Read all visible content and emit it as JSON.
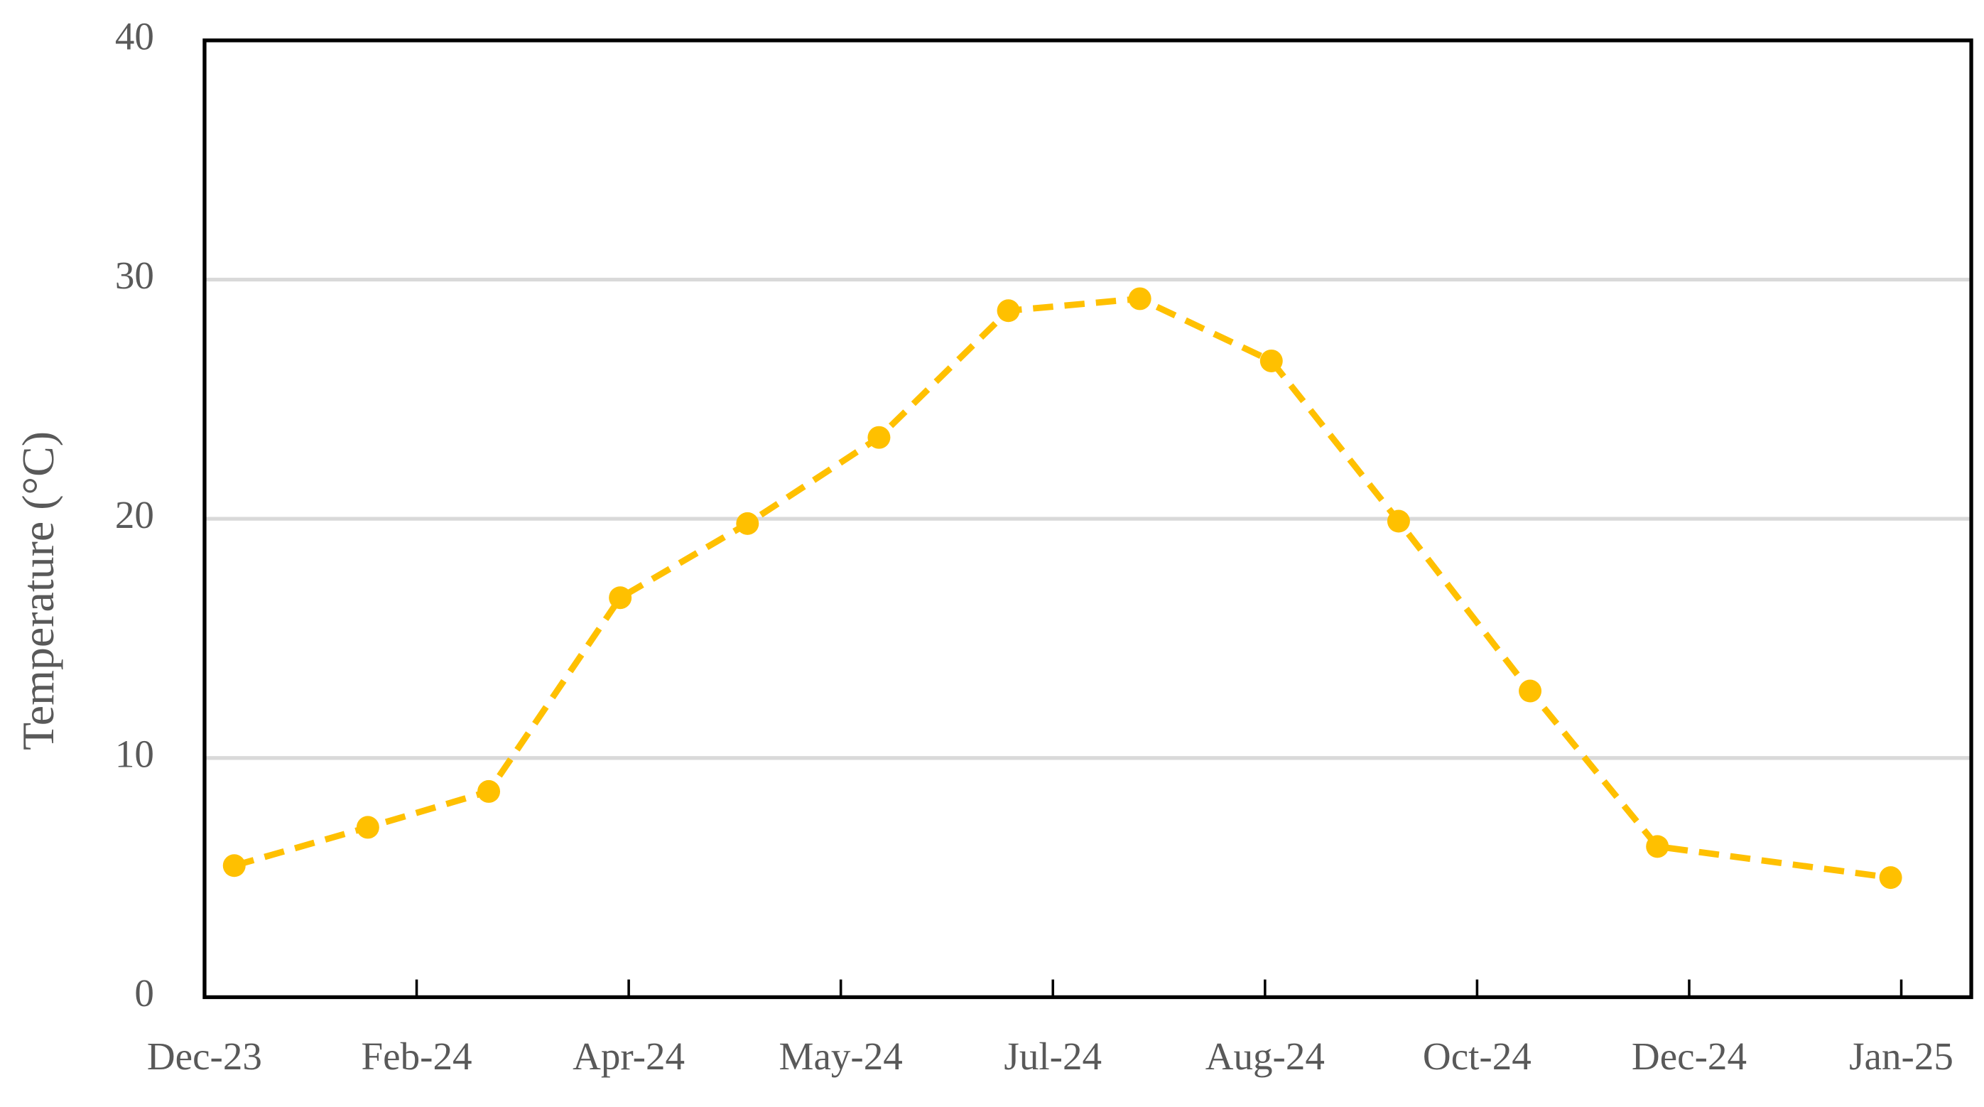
{
  "chart_data": {
    "type": "line",
    "y_label": "Temperature (°C)",
    "x": [
      0.14,
      0.77,
      1.34,
      1.96,
      2.56,
      3.18,
      3.79,
      4.41,
      5.03,
      5.63,
      6.25,
      6.85,
      7.95
    ],
    "series": [
      {
        "name": "Temperature",
        "color": "#FFC000",
        "values": [
          5.5,
          7.1,
          8.6,
          16.7,
          19.8,
          23.4,
          28.7,
          29.2,
          26.6,
          19.9,
          12.8,
          6.3,
          5.0
        ]
      }
    ],
    "xlim": [
      0,
      8.33
    ],
    "xticks": [
      {
        "value": 0,
        "label": "Dec-23"
      },
      {
        "value": 1,
        "label": "Feb-24"
      },
      {
        "value": 2,
        "label": "Apr-24"
      },
      {
        "value": 3,
        "label": "May-24"
      },
      {
        "value": 4,
        "label": "Jul-24"
      },
      {
        "value": 5,
        "label": "Aug-24"
      },
      {
        "value": 6,
        "label": "Oct-24"
      },
      {
        "value": 7,
        "label": "Dec-24"
      },
      {
        "value": 8,
        "label": "Jan-25"
      }
    ],
    "ylim": [
      0,
      40
    ],
    "yticks": [
      0,
      10,
      20,
      30,
      40
    ],
    "grid": true,
    "dashed": true
  }
}
